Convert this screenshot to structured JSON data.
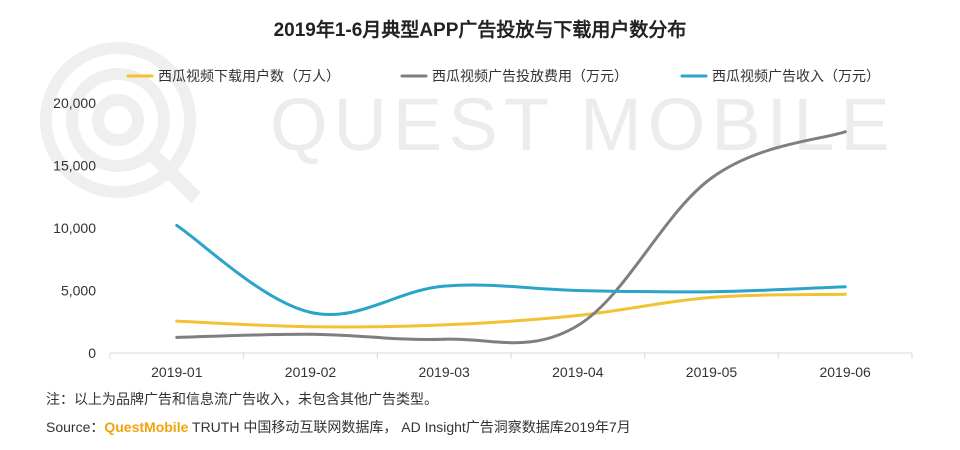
{
  "chart_data": {
    "type": "line",
    "title": "2019年1-6月典型APP广告投放与下载用户数分布",
    "categories": [
      "2019-01",
      "2019-02",
      "2019-03",
      "2019-04",
      "2019-05",
      "2019-06"
    ],
    "ylim": [
      0,
      20000
    ],
    "yticks": [
      0,
      5000,
      10000,
      15000,
      20000
    ],
    "ytick_labels": [
      "0",
      "5,000",
      "10,000",
      "15,000",
      "20,000"
    ],
    "grid": false,
    "legend_position": "top",
    "series": [
      {
        "name": "西瓜视频下载用户数（万人）",
        "color": "#f2c230",
        "values": [
          2550,
          2100,
          2250,
          3000,
          4450,
          4700
        ]
      },
      {
        "name": "西瓜视频广告投放费用（万元）",
        "color": "#7f7f7f",
        "values": [
          1250,
          1500,
          1100,
          2200,
          14000,
          17700
        ]
      },
      {
        "name": "西瓜视频广告收入（万元）",
        "color": "#2aa4c8",
        "values": [
          10200,
          3250,
          5350,
          5000,
          4900,
          5300
        ]
      }
    ]
  },
  "watermark_text": "QUEST MOBILE",
  "note": "注：以上为品牌广告和信息流广告收入，未包含其他广告类型。",
  "source": {
    "label": "Source：",
    "brand": "QuestMobile",
    "text": " TRUTH 中国移动互联网数据库， AD Insight广告洞察数据库2019年7月"
  }
}
